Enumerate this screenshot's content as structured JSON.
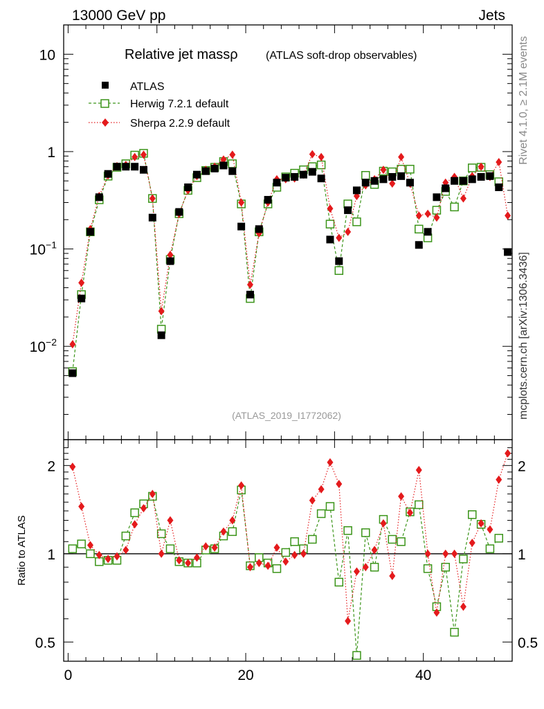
{
  "header": {
    "left": "13000 GeV pp",
    "right": "Jets"
  },
  "side_labels": {
    "rivet": "Rivet 4.1.0, ≥ 2.1M events",
    "mcplots": "mcplots.cern.ch [arXiv:1306.3436]"
  },
  "chart_data": [
    {
      "panel": "main",
      "type": "scatter",
      "title": "Relative jet massρ",
      "subtitle": "(ATLAS soft-drop observables)",
      "analysis_label": "(ATLAS_2019_I1772062)",
      "y_scale": "log",
      "xlim": [
        -0.5,
        50
      ],
      "ylim": [
        0.0011,
        20
      ],
      "y_ticks": [
        {
          "value": 0.01,
          "label": "10",
          "exp": "−2"
        },
        {
          "value": 0.1,
          "label": "10",
          "exp": "−1"
        },
        {
          "value": 1,
          "label": "1",
          "exp": ""
        },
        {
          "value": 10,
          "label": "10",
          "exp": ""
        }
      ],
      "x": [
        0.5,
        1.5,
        2.5,
        3.5,
        4.5,
        5.5,
        6.5,
        7.5,
        8.5,
        9.5,
        10.5,
        11.5,
        12.5,
        13.5,
        14.5,
        15.5,
        16.5,
        17.5,
        18.5,
        19.5,
        20.5,
        21.5,
        22.5,
        23.5,
        24.5,
        25.5,
        26.5,
        27.5,
        28.5,
        29.5,
        30.5,
        31.5,
        32.5,
        33.5,
        34.5,
        35.5,
        36.5,
        37.5,
        38.5,
        39.5,
        40.5,
        41.5,
        42.5,
        43.5,
        44.5,
        45.5,
        46.5,
        47.5,
        48.5,
        49.5
      ],
      "legend_placement": "top-left",
      "series": [
        {
          "name": "ATLAS",
          "marker": "filled-square",
          "color": "#000000",
          "values": [
            0.0053,
            0.031,
            0.15,
            0.34,
            0.59,
            0.7,
            0.7,
            0.7,
            0.65,
            0.21,
            0.013,
            0.075,
            0.24,
            0.43,
            0.58,
            0.63,
            0.67,
            0.72,
            0.63,
            0.17,
            0.034,
            0.16,
            0.32,
            0.48,
            0.54,
            0.55,
            0.58,
            0.62,
            0.53,
            0.125,
            0.075,
            0.25,
            0.4,
            0.48,
            0.5,
            0.52,
            0.55,
            0.56,
            0.48,
            0.11,
            0.15,
            0.34,
            0.42,
            0.5,
            0.5,
            0.52,
            0.55,
            0.56,
            0.43,
            0.093
          ]
        },
        {
          "name": "Herwig 7.2.1 default",
          "marker": "open-square",
          "line": "dashed",
          "color": "#3a9418",
          "values": [
            0.0055,
            0.034,
            0.15,
            0.32,
            0.56,
            0.69,
            0.75,
            0.92,
            0.96,
            0.33,
            0.015,
            0.078,
            0.23,
            0.4,
            0.54,
            0.64,
            0.69,
            0.79,
            0.75,
            0.29,
            0.031,
            0.15,
            0.29,
            0.43,
            0.55,
            0.6,
            0.65,
            0.7,
            0.73,
            0.18,
            0.06,
            0.29,
            0.19,
            0.57,
            0.46,
            0.63,
            0.62,
            0.66,
            0.66,
            0.16,
            0.13,
            0.25,
            0.39,
            0.27,
            0.5,
            0.68,
            0.69,
            0.58,
            0.49,
            null
          ]
        },
        {
          "name": "Sherpa 2.2.9 default",
          "marker": "filled-diamond",
          "line": "dotted",
          "color": "#e41a1c",
          "values": [
            0.0105,
            0.045,
            0.16,
            0.35,
            0.57,
            0.71,
            0.73,
            0.88,
            0.93,
            0.33,
            0.023,
            0.087,
            0.23,
            0.4,
            0.56,
            0.65,
            0.7,
            0.83,
            0.93,
            0.3,
            0.043,
            0.145,
            0.3,
            0.52,
            0.52,
            0.53,
            0.58,
            0.94,
            0.88,
            0.26,
            0.13,
            0.15,
            0.35,
            0.45,
            0.52,
            0.65,
            0.47,
            0.88,
            0.47,
            0.22,
            0.23,
            0.21,
            0.48,
            0.55,
            0.33,
            0.56,
            0.7,
            0.55,
            0.78,
            0.22
          ]
        }
      ]
    },
    {
      "panel": "ratio",
      "type": "scatter",
      "ylabel": "Ratio to ATLAS",
      "y_scale": "log",
      "xlim": [
        -0.5,
        50
      ],
      "ylim": [
        0.43,
        2.45
      ],
      "reference_line": 1,
      "y_ticks": [
        {
          "value": 0.5,
          "label": "0.5"
        },
        {
          "value": 1,
          "label": "1"
        },
        {
          "value": 2,
          "label": "2"
        }
      ],
      "x_ticks": [
        {
          "value": 0,
          "label": "0"
        },
        {
          "value": 20,
          "label": "20"
        },
        {
          "value": 40,
          "label": "40"
        }
      ],
      "x": [
        0.5,
        1.5,
        2.5,
        3.5,
        4.5,
        5.5,
        6.5,
        7.5,
        8.5,
        9.5,
        10.5,
        11.5,
        12.5,
        13.5,
        14.5,
        15.5,
        16.5,
        17.5,
        18.5,
        19.5,
        20.5,
        21.5,
        22.5,
        23.5,
        24.5,
        25.5,
        26.5,
        27.5,
        28.5,
        29.5,
        30.5,
        31.5,
        32.5,
        33.5,
        34.5,
        35.5,
        36.5,
        37.5,
        38.5,
        39.5,
        40.5,
        41.5,
        42.5,
        43.5,
        44.5,
        45.5,
        46.5,
        47.5,
        48.5,
        49.5
      ],
      "series": [
        {
          "name": "Herwig 7.2.1 default",
          "marker": "open-square",
          "line": "dashed",
          "color": "#3a9418",
          "values": [
            1.04,
            1.08,
            1.0,
            0.94,
            0.95,
            0.95,
            1.15,
            1.38,
            1.48,
            1.57,
            1.17,
            1.04,
            0.94,
            0.93,
            0.93,
            1.03,
            1.04,
            1.15,
            1.19,
            1.65,
            0.91,
            0.97,
            0.93,
            0.89,
            1.01,
            1.1,
            1.04,
            1.12,
            1.37,
            1.45,
            0.8,
            1.2,
            0.45,
            1.18,
            0.9,
            1.31,
            1.12,
            1.1,
            1.39,
            1.47,
            0.89,
            0.66,
            0.9,
            0.54,
            0.96,
            1.36,
            1.26,
            1.04,
            1.13,
            null
          ]
        },
        {
          "name": "Sherpa 2.2.9 default",
          "marker": "filled-diamond",
          "line": "dotted",
          "color": "#e41a1c",
          "values": [
            1.98,
            1.45,
            1.07,
            0.99,
            0.96,
            0.98,
            1.03,
            1.26,
            1.43,
            1.6,
            1.0,
            1.3,
            0.95,
            0.93,
            0.97,
            1.06,
            1.05,
            1.19,
            1.3,
            1.71,
            0.9,
            0.93,
            0.91,
            1.05,
            0.94,
            0.99,
            1.0,
            1.52,
            1.66,
            2.05,
            1.73,
            0.59,
            0.87,
            0.9,
            1.03,
            1.27,
            0.84,
            1.57,
            1.38,
            1.93,
            1.0,
            0.63,
            1.0,
            1.0,
            0.66,
            1.09,
            1.27,
            1.21,
            1.79,
            2.2
          ]
        }
      ]
    }
  ]
}
